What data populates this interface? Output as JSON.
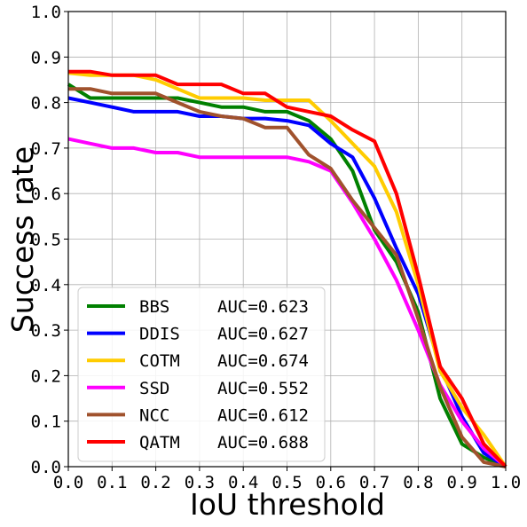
{
  "chart_data": {
    "type": "line",
    "title": "",
    "xlabel": "IoU threshold",
    "ylabel": "Success rate",
    "xlim": [
      0.0,
      1.0
    ],
    "ylim": [
      0.0,
      1.0
    ],
    "grid": true,
    "legend_position": "lower-left",
    "x_ticks": [
      "0.0",
      "0.1",
      "0.2",
      "0.3",
      "0.4",
      "0.5",
      "0.6",
      "0.7",
      "0.8",
      "0.9",
      "1.0"
    ],
    "y_ticks": [
      "0.0",
      "0.1",
      "0.2",
      "0.3",
      "0.4",
      "0.5",
      "0.6",
      "0.7",
      "0.8",
      "0.9",
      "1.0"
    ],
    "x": [
      0.0,
      0.05,
      0.1,
      0.15,
      0.2,
      0.25,
      0.3,
      0.35,
      0.4,
      0.45,
      0.5,
      0.55,
      0.6,
      0.65,
      0.7,
      0.75,
      0.8,
      0.85,
      0.9,
      0.95,
      1.0
    ],
    "series": [
      {
        "name": "BBS",
        "auc": "AUC=0.623",
        "color": "#008000",
        "values": [
          0.84,
          0.81,
          0.81,
          0.81,
          0.81,
          0.81,
          0.8,
          0.79,
          0.79,
          0.78,
          0.78,
          0.76,
          0.72,
          0.65,
          0.52,
          0.45,
          0.34,
          0.15,
          0.05,
          0.02,
          0.0
        ]
      },
      {
        "name": "DDIS",
        "auc": "AUC=0.627",
        "color": "#0000ff",
        "values": [
          0.81,
          0.8,
          0.79,
          0.78,
          0.78,
          0.78,
          0.77,
          0.77,
          0.765,
          0.765,
          0.76,
          0.75,
          0.71,
          0.68,
          0.59,
          0.48,
          0.38,
          0.22,
          0.11,
          0.03,
          0.0
        ]
      },
      {
        "name": "COTM",
        "auc": "AUC=0.674",
        "color": "#ffcc00",
        "values": [
          0.865,
          0.86,
          0.86,
          0.86,
          0.85,
          0.83,
          0.81,
          0.81,
          0.81,
          0.805,
          0.805,
          0.805,
          0.76,
          0.71,
          0.66,
          0.56,
          0.4,
          0.21,
          0.13,
          0.07,
          0.0
        ]
      },
      {
        "name": "SSD",
        "auc": "AUC=0.552",
        "color": "#ff00ff",
        "values": [
          0.72,
          0.71,
          0.7,
          0.7,
          0.69,
          0.69,
          0.68,
          0.68,
          0.68,
          0.68,
          0.68,
          0.67,
          0.65,
          0.58,
          0.5,
          0.41,
          0.3,
          0.18,
          0.1,
          0.04,
          0.0
        ]
      },
      {
        "name": "NCC",
        "auc": "AUC=0.612",
        "color": "#a0522d",
        "values": [
          0.83,
          0.83,
          0.82,
          0.82,
          0.82,
          0.8,
          0.78,
          0.77,
          0.765,
          0.745,
          0.745,
          0.685,
          0.655,
          0.585,
          0.525,
          0.465,
          0.325,
          0.175,
          0.065,
          0.01,
          0.0
        ]
      },
      {
        "name": "QATM",
        "auc": "AUC=0.688",
        "color": "#ff0000",
        "values": [
          0.868,
          0.868,
          0.86,
          0.86,
          0.86,
          0.84,
          0.84,
          0.84,
          0.82,
          0.82,
          0.79,
          0.78,
          0.77,
          0.74,
          0.715,
          0.6,
          0.42,
          0.22,
          0.15,
          0.05,
          0.0
        ]
      }
    ]
  }
}
